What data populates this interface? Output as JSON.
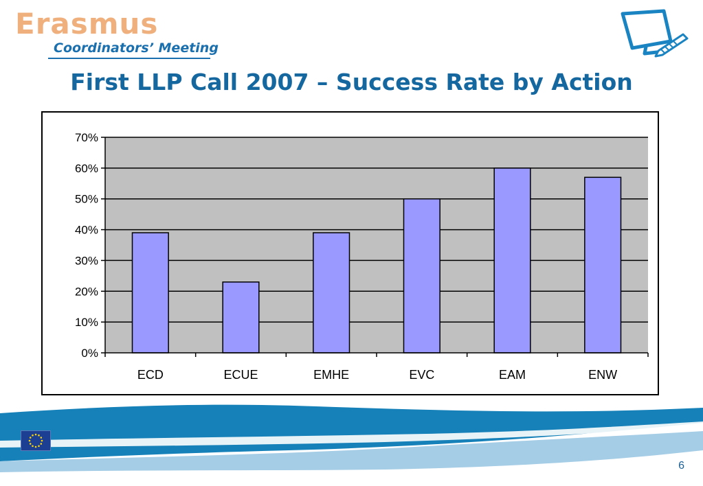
{
  "header": {
    "logo_word": "Erasmus",
    "logo_subtitle": "Coordinators’ Meeting",
    "title": "First LLP Call 2007 – Success Rate by Action"
  },
  "footer": {
    "page_number": "6"
  },
  "colors": {
    "title": "#15679f",
    "logo_word": "#f0b07e",
    "bar_fill": "#9999ff",
    "plot_bg": "#c0c0c0",
    "wave_dark": "#1581b8",
    "wave_light": "#a5cde6"
  },
  "chart_data": {
    "type": "bar",
    "title": "",
    "xlabel": "",
    "ylabel": "",
    "categories": [
      "ECD",
      "ECUE",
      "EMHE",
      "EVC",
      "EAM",
      "ENW"
    ],
    "values": [
      0.39,
      0.23,
      0.39,
      0.5,
      0.6,
      0.57
    ],
    "ylim": [
      0,
      0.7
    ],
    "yticks": [
      "0%",
      "10%",
      "20%",
      "30%",
      "40%",
      "50%",
      "60%",
      "70%"
    ],
    "grid": true,
    "legend": "none"
  }
}
